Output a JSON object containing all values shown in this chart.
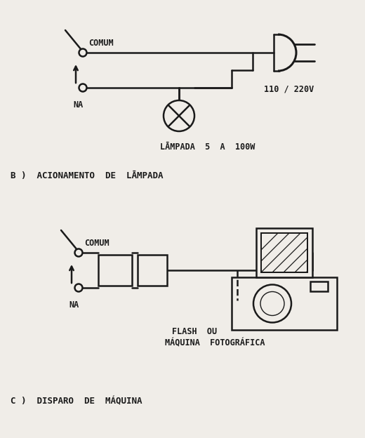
{
  "bg_color": "#f0ede8",
  "line_color": "#1a1a1a",
  "text_color": "#1a1a1a",
  "section_b_label": "B )  ACIONAMENTO  DE  LĀMPADA",
  "section_c_label": "C )  DISPARO  DE  MÁQUINA",
  "voltage_label": "110 / 220V",
  "lamp_label": "LĀMPADA  5  A  100W",
  "flash_label_1": "FLASH  OU",
  "flash_label_2": "MÁQUINA  FOTOGRÁFICA",
  "comum_label": "COMUM",
  "na_label": "NA"
}
